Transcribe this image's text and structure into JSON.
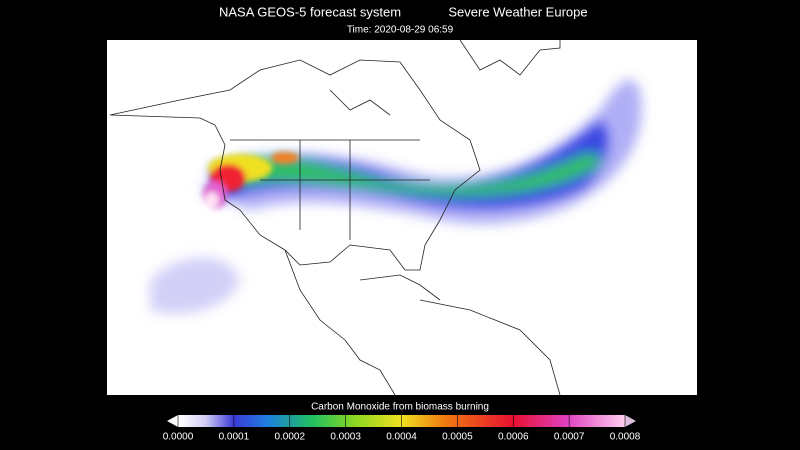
{
  "header": {
    "title": "NASA GEOS-5 forecast system",
    "source": "Severe Weather Europe",
    "time": "Time: 2020-08-29 06:59"
  },
  "colorbar": {
    "label": "Carbon Monoxide from biomass burning",
    "range": [
      0,
      0.0008
    ],
    "ticks": [
      {
        "value": 0,
        "label": "0.0000"
      },
      {
        "value": 0.0001,
        "label": "0.0001"
      },
      {
        "value": 0.0002,
        "label": "0.0002"
      },
      {
        "value": 0.0003,
        "label": "0.0003"
      },
      {
        "value": 0.0004,
        "label": "0.0004"
      },
      {
        "value": 0.0005,
        "label": "0.0005"
      },
      {
        "value": 0.0006,
        "label": "0.0006"
      },
      {
        "value": 0.0007,
        "label": "0.0007"
      },
      {
        "value": 0.0008,
        "label": "0.0008"
      }
    ]
  }
}
